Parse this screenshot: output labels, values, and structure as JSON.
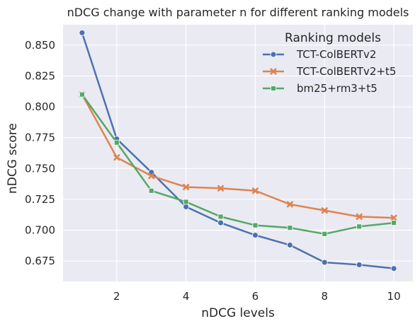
{
  "chart_data": {
    "type": "line",
    "title": "nDCG change with parameter n for different ranking models",
    "xlabel": "nDCG levels",
    "ylabel": "nDCG score",
    "x": [
      1,
      2,
      3,
      4,
      5,
      6,
      7,
      8,
      9,
      10
    ],
    "xlim": [
      0.45,
      10.55
    ],
    "ylim": [
      0.6585,
      0.8665
    ],
    "xticks": [
      2,
      4,
      6,
      8,
      10
    ],
    "yticks": [
      0.675,
      0.7,
      0.725,
      0.75,
      0.775,
      0.8,
      0.825,
      0.85
    ],
    "ytick_labels": [
      "0.675",
      "0.700",
      "0.725",
      "0.750",
      "0.775",
      "0.800",
      "0.825",
      "0.850"
    ],
    "grid": true,
    "background": "#eaeaf2",
    "legend": {
      "title": "Ranking models",
      "placement": "top-right"
    },
    "series": [
      {
        "name": "TCT-ColBERTv2",
        "color": "#4c72b0",
        "marker": "circle",
        "values": [
          0.86,
          0.774,
          0.747,
          0.719,
          0.706,
          0.696,
          0.688,
          0.674,
          0.672,
          0.669
        ]
      },
      {
        "name": "TCT-ColBERTv2+t5",
        "color": "#dd8452",
        "marker": "x",
        "values": [
          0.81,
          0.759,
          0.744,
          0.735,
          0.734,
          0.732,
          0.721,
          0.716,
          0.711,
          0.71
        ]
      },
      {
        "name": "bm25+rm3+t5",
        "color": "#55a868",
        "marker": "square",
        "values": [
          0.81,
          0.771,
          0.732,
          0.723,
          0.711,
          0.704,
          0.702,
          0.697,
          0.703,
          0.706
        ]
      }
    ]
  }
}
